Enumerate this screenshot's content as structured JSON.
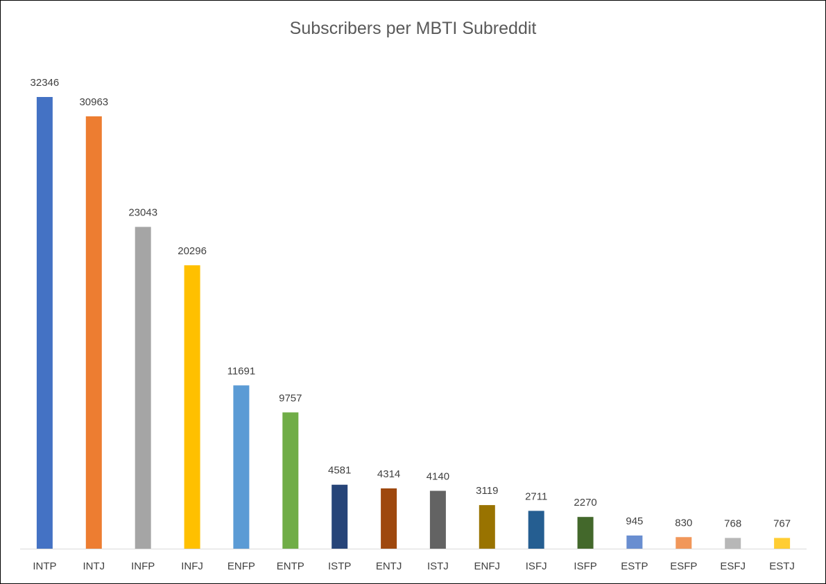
{
  "chart_data": {
    "type": "bar",
    "title": "Subscribers per MBTI Subreddit",
    "xlabel": "",
    "ylabel": "",
    "grid": false,
    "legend": "none",
    "categories": [
      "INTP",
      "INTJ",
      "INFP",
      "INFJ",
      "ENFP",
      "ENTP",
      "ISTP",
      "ENTJ",
      "ISTJ",
      "ENFJ",
      "ISFJ",
      "ISFP",
      "ESTP",
      "ESFP",
      "ESFJ",
      "ESTJ"
    ],
    "values": [
      32346,
      30963,
      23043,
      20296,
      11691,
      9757,
      4581,
      4314,
      4140,
      3119,
      2711,
      2270,
      945,
      830,
      768,
      767
    ],
    "colors": [
      "#4472C4",
      "#ED7D31",
      "#A5A5A5",
      "#FFC000",
      "#5B9BD5",
      "#70AD47",
      "#264478",
      "#9E480E",
      "#636363",
      "#997300",
      "#255E91",
      "#43682B",
      "#698ED0",
      "#F1975A",
      "#B7B7B7",
      "#FFCD33"
    ],
    "axis_color": "#D9D9D9",
    "ylim": [
      0,
      33000
    ]
  }
}
